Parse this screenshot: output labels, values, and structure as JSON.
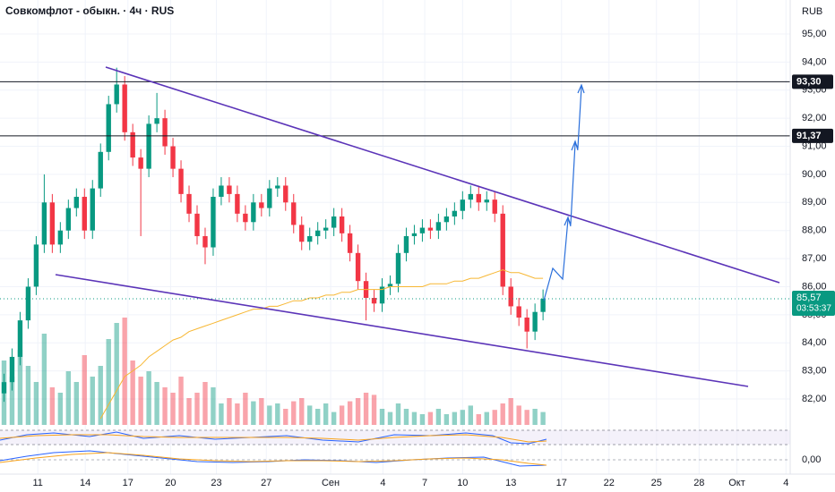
{
  "chart_data": {
    "type": "candlestick",
    "title": "Совкомфлот - обыкн. · 4ч · RUS",
    "currency": "RUB",
    "up_color": "#089981",
    "down_color": "#f23645",
    "ma_color": "#f7b733",
    "grid": true,
    "xlim": [
      -0.5,
      97.5
    ],
    "xticks": [
      {
        "value": 4.2,
        "label": "11"
      },
      {
        "value": 10.1,
        "label": "14"
      },
      {
        "value": 15.4,
        "label": "17"
      },
      {
        "value": 20.7,
        "label": "20"
      },
      {
        "value": 26.4,
        "label": "23"
      },
      {
        "value": 32.6,
        "label": "27"
      },
      {
        "value": 40.6,
        "label": "Сен"
      },
      {
        "value": 47.1,
        "label": "4"
      },
      {
        "value": 52.3,
        "label": "7"
      },
      {
        "value": 57,
        "label": "10"
      },
      {
        "value": 63,
        "label": "13"
      },
      {
        "value": 69.3,
        "label": "17"
      },
      {
        "value": 75.2,
        "label": "22"
      },
      {
        "value": 81.1,
        "label": "25"
      },
      {
        "value": 86.4,
        "label": "28"
      },
      {
        "value": 91.1,
        "label": "Окт"
      },
      {
        "value": 97.2,
        "label": "4"
      }
    ],
    "ylim": [
      81,
      96
    ],
    "yticks": [
      {
        "value": 82,
        "label": "82,00"
      },
      {
        "value": 83,
        "label": "83,00"
      },
      {
        "value": 84,
        "label": "84,00"
      },
      {
        "value": 85,
        "label": "85,00"
      },
      {
        "value": 86,
        "label": "86,00"
      },
      {
        "value": 87,
        "label": "87,00"
      },
      {
        "value": 88,
        "label": "88,00"
      },
      {
        "value": 89,
        "label": "89,00"
      },
      {
        "value": 90,
        "label": "90,00"
      },
      {
        "value": 91,
        "label": "91,00"
      },
      {
        "value": 92,
        "label": "92,00"
      },
      {
        "value": 93,
        "label": "93,00"
      },
      {
        "value": 94,
        "label": "94,00"
      },
      {
        "value": 95,
        "label": "95,00"
      }
    ],
    "open": [
      82.2,
      82.6,
      83.5,
      84.8,
      86.0,
      87.5,
      89.0,
      87.5,
      88.0,
      88.8,
      89.2,
      88.0,
      89.5,
      90.8,
      92.5,
      93.2,
      91.5,
      90.6,
      90.2,
      91.8,
      92.0,
      91.0,
      90.2,
      89.3,
      88.6,
      87.8,
      87.4,
      89.2,
      89.6,
      89.3,
      88.6,
      88.3,
      89.0,
      88.8,
      89.5,
      89.6,
      89.0,
      88.2,
      87.6,
      87.8,
      88.0,
      88.1,
      88.5,
      87.9,
      87.2,
      86.2,
      85.6,
      85.4,
      86.0,
      86.1,
      87.2,
      87.8,
      87.9,
      88.1,
      88.0,
      88.3,
      88.5,
      88.7,
      89.1,
      89.3,
      89.0,
      89.1,
      88.6,
      86.0,
      85.3,
      84.9,
      84.4,
      85.1
    ],
    "high": [
      82.9,
      83.8,
      85.1,
      86.3,
      87.8,
      90.0,
      89.3,
      88.3,
      89.1,
      89.5,
      89.5,
      89.8,
      91.1,
      92.8,
      93.8,
      93.5,
      91.8,
      90.9,
      92.1,
      92.9,
      92.3,
      91.3,
      90.5,
      89.6,
      88.9,
      88.1,
      89.5,
      89.9,
      89.9,
      89.6,
      88.9,
      89.3,
      89.3,
      89.8,
      89.9,
      89.9,
      89.3,
      88.5,
      88.1,
      88.3,
      88.4,
      88.8,
      88.8,
      88.2,
      87.5,
      86.5,
      85.9,
      86.3,
      86.4,
      87.5,
      88.1,
      88.2,
      88.4,
      88.4,
      88.6,
      88.8,
      89.0,
      89.4,
      89.6,
      89.6,
      89.4,
      89.4,
      88.9,
      86.3,
      85.6,
      85.2,
      85.4,
      85.9
    ],
    "low": [
      81.9,
      82.3,
      83.2,
      84.5,
      85.7,
      87.2,
      87.2,
      87.2,
      87.7,
      88.5,
      87.7,
      87.7,
      89.2,
      90.5,
      92.2,
      91.2,
      90.3,
      87.8,
      89.9,
      91.5,
      90.7,
      89.9,
      89.0,
      88.3,
      87.5,
      86.8,
      87.1,
      88.9,
      89.0,
      88.3,
      88.0,
      88.0,
      88.5,
      88.5,
      89.2,
      88.7,
      87.9,
      87.3,
      87.3,
      87.5,
      87.7,
      87.8,
      87.6,
      86.9,
      85.9,
      84.8,
      85.1,
      85.1,
      85.7,
      85.8,
      86.9,
      87.5,
      87.6,
      87.7,
      87.7,
      88.0,
      88.2,
      88.4,
      88.8,
      88.7,
      88.7,
      88.3,
      85.7,
      85.0,
      84.6,
      83.8,
      84.1,
      84.8
    ],
    "close": [
      82.6,
      83.5,
      84.8,
      86.0,
      87.5,
      89.0,
      87.5,
      88.0,
      88.8,
      89.2,
      88.0,
      89.5,
      90.8,
      92.5,
      93.2,
      91.5,
      90.6,
      90.2,
      91.8,
      92.0,
      91.0,
      90.2,
      89.3,
      88.6,
      87.8,
      87.4,
      89.2,
      89.6,
      89.3,
      88.6,
      88.3,
      89.0,
      88.8,
      89.5,
      89.6,
      89.0,
      88.2,
      87.6,
      87.8,
      88.0,
      88.1,
      88.5,
      87.9,
      87.2,
      86.2,
      85.6,
      85.4,
      86.0,
      86.1,
      87.2,
      87.8,
      87.9,
      88.1,
      88.0,
      88.3,
      88.5,
      88.7,
      89.1,
      89.3,
      89.0,
      89.1,
      88.6,
      86.0,
      85.3,
      84.9,
      84.4,
      85.1,
      85.57
    ],
    "volume": [
      60,
      45,
      70,
      55,
      40,
      85,
      35,
      30,
      50,
      40,
      65,
      45,
      55,
      80,
      95,
      100,
      60,
      45,
      50,
      40,
      35,
      30,
      45,
      25,
      30,
      40,
      35,
      20,
      25,
      20,
      30,
      22,
      25,
      18,
      20,
      15,
      22,
      25,
      18,
      15,
      20,
      12,
      18,
      22,
      25,
      30,
      28,
      15,
      12,
      20,
      15,
      12,
      10,
      12,
      15,
      10,
      12,
      14,
      18,
      10,
      12,
      14,
      20,
      25,
      18,
      14,
      15,
      12
    ],
    "ma": [
      null,
      null,
      null,
      null,
      null,
      null,
      null,
      null,
      null,
      null,
      null,
      null,
      81.3,
      81.8,
      82.3,
      82.8,
      83.0,
      83.2,
      83.5,
      83.7,
      83.9,
      84.1,
      84.2,
      84.4,
      84.5,
      84.6,
      84.7,
      84.8,
      84.9,
      85.0,
      85.1,
      85.2,
      85.2,
      85.3,
      85.3,
      85.4,
      85.5,
      85.5,
      85.6,
      85.6,
      85.7,
      85.7,
      85.8,
      85.8,
      85.9,
      85.9,
      85.9,
      85.9,
      86.0,
      86.0,
      86.0,
      86.0,
      86.0,
      86.1,
      86.1,
      86.1,
      86.2,
      86.2,
      86.3,
      86.3,
      86.4,
      86.5,
      86.6,
      86.5,
      86.5,
      86.4,
      86.3,
      86.3
    ],
    "levels": [
      {
        "value": 93.3,
        "label": "93,30"
      },
      {
        "value": 91.37,
        "label": "91,37"
      }
    ],
    "last_price": {
      "value": 85.57,
      "label": "85,57"
    },
    "countdown": "03:53:37",
    "macd_zero_label": "0,00"
  }
}
